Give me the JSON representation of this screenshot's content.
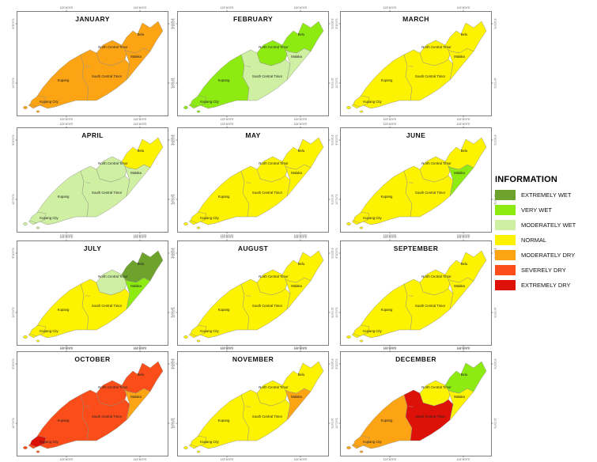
{
  "figure": {
    "title": ""
  },
  "legend": {
    "title": "INFORMATION",
    "items": [
      {
        "label": "EXTREMELY WET",
        "color": "#6da32d"
      },
      {
        "label": "VERY WET",
        "color": "#8deb12"
      },
      {
        "label": "MODERATELY WET",
        "color": "#cff0a2"
      },
      {
        "label": "NORMAL",
        "color": "#fdf300"
      },
      {
        "label": "MODERATELY DRY",
        "color": "#fca414"
      },
      {
        "label": "SEVERELY DRY",
        "color": "#fa4d19"
      },
      {
        "label": "EXTREMELY DRY",
        "color": "#de1108"
      }
    ]
  },
  "regions": [
    {
      "id": "kupang",
      "label": "Kupang"
    },
    {
      "id": "kupang_city",
      "label": "Kupang City"
    },
    {
      "id": "sct",
      "label": "South Central Timor"
    },
    {
      "id": "nct",
      "label": "North Central Timor"
    },
    {
      "id": "malaka",
      "label": "Malaka"
    },
    {
      "id": "belu",
      "label": "Belu"
    }
  ],
  "axis_ticks": {
    "x": [
      "123°40'0\"E",
      "124°40'0\"E"
    ],
    "y": [
      "9°20'0\"S",
      "10°0'0\"S"
    ]
  },
  "months": [
    {
      "name": "JANUARY",
      "classes": {
        "kupang": "MODERATELY DRY",
        "kupang_city": "MODERATELY DRY",
        "sct": "MODERATELY DRY",
        "nct": "MODERATELY DRY",
        "malaka": "MODERATELY DRY",
        "belu": "MODERATELY DRY"
      }
    },
    {
      "name": "FEBRUARY",
      "classes": {
        "kupang": "VERY WET",
        "kupang_city": "VERY WET",
        "sct": "MODERATELY WET",
        "nct": "VERY WET",
        "malaka": "MODERATELY WET",
        "belu": "VERY WET"
      }
    },
    {
      "name": "MARCH",
      "classes": {
        "kupang": "NORMAL",
        "kupang_city": "NORMAL",
        "sct": "NORMAL",
        "nct": "NORMAL",
        "malaka": "NORMAL",
        "belu": "NORMAL"
      }
    },
    {
      "name": "APRIL",
      "classes": {
        "kupang": "MODERATELY WET",
        "kupang_city": "MODERATELY WET",
        "sct": "MODERATELY WET",
        "nct": "MODERATELY WET",
        "malaka": "MODERATELY WET",
        "belu": "NORMAL"
      }
    },
    {
      "name": "MAY",
      "classes": {
        "kupang": "NORMAL",
        "kupang_city": "NORMAL",
        "sct": "NORMAL",
        "nct": "NORMAL",
        "malaka": "NORMAL",
        "belu": "NORMAL"
      }
    },
    {
      "name": "JUNE",
      "classes": {
        "kupang": "NORMAL",
        "kupang_city": "NORMAL",
        "sct": "NORMAL",
        "nct": "NORMAL",
        "malaka": "VERY WET",
        "belu": "NORMAL"
      }
    },
    {
      "name": "JULY",
      "classes": {
        "kupang": "NORMAL",
        "kupang_city": "NORMAL",
        "sct": "NORMAL",
        "nct": "MODERATELY WET",
        "malaka": "VERY WET",
        "belu": "EXTREMELY WET"
      }
    },
    {
      "name": "AUGUST",
      "classes": {
        "kupang": "NORMAL",
        "kupang_city": "NORMAL",
        "sct": "NORMAL",
        "nct": "NORMAL",
        "malaka": "NORMAL",
        "belu": "NORMAL"
      }
    },
    {
      "name": "SEPTEMBER",
      "classes": {
        "kupang": "NORMAL",
        "kupang_city": "NORMAL",
        "sct": "NORMAL",
        "nct": "NORMAL",
        "malaka": "NORMAL",
        "belu": "NORMAL"
      }
    },
    {
      "name": "OCTOBER",
      "classes": {
        "kupang": "SEVERELY DRY",
        "kupang_city": "EXTREMELY DRY",
        "sct": "SEVERELY DRY",
        "nct": "SEVERELY DRY",
        "malaka": "MODERATELY DRY",
        "belu": "SEVERELY DRY"
      }
    },
    {
      "name": "NOVEMBER",
      "classes": {
        "kupang": "NORMAL",
        "kupang_city": "NORMAL",
        "sct": "NORMAL",
        "nct": "NORMAL",
        "malaka": "MODERATELY DRY",
        "belu": "NORMAL"
      }
    },
    {
      "name": "DECEMBER",
      "classes": {
        "kupang": "MODERATELY DRY",
        "kupang_city": "MODERATELY DRY",
        "sct": "EXTREMELY DRY",
        "nct": "NORMAL",
        "malaka": "NORMAL",
        "belu": "VERY WET"
      }
    }
  ]
}
